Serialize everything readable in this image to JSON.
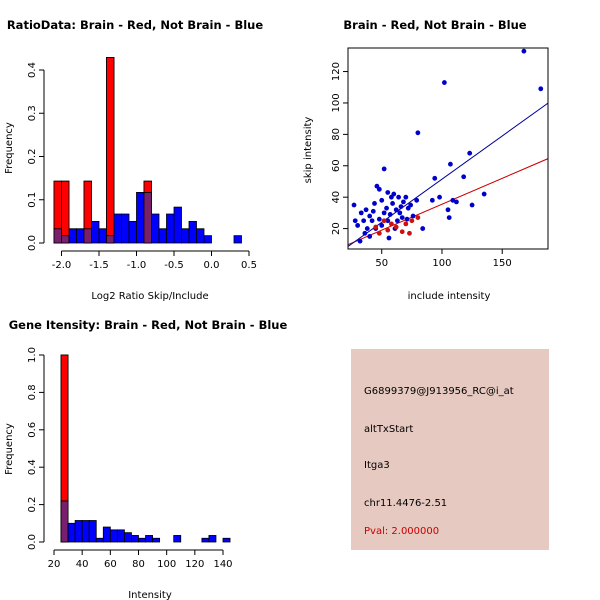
{
  "colors": {
    "red": "#ff0000",
    "blue": "#0000ff",
    "purple": "#7a1f6e",
    "bar_border": "#000000",
    "info_bg": "#e6c9c1",
    "pval_text": "#cc0000",
    "dot_red": "#cc1111",
    "dot_blue": "#0000cc",
    "line_red": "#cc0000",
    "line_blue": "#000099"
  },
  "chart_data": [
    {
      "type": "bar",
      "name": "ratio-histogram",
      "title": "RatioData: Brain - Red, Not Brain - Blue",
      "xlabel": "Log2 Ratio Skip/Include",
      "ylabel": "Frequency",
      "xlim": [
        -2.1,
        0.5
      ],
      "ylim": [
        0,
        0.43
      ],
      "xticks": [
        -2.0,
        -1.5,
        -1.0,
        -0.5,
        0.0,
        0.5
      ],
      "xtick_labels": [
        "-2.0",
        "-1.5",
        "-1.0",
        "-0.5",
        "0.0",
        "0.5"
      ],
      "yticks": [
        0.0,
        0.1,
        0.2,
        0.3,
        0.4
      ],
      "ytick_labels": [
        "0.0",
        "0.1",
        "0.2",
        "0.3",
        "0.4"
      ],
      "bin_width": 0.1,
      "series": [
        {
          "name": "Brain",
          "color": "red",
          "bins": [
            [
              -2.1,
              0.143
            ],
            [
              -2.0,
              0.143
            ],
            [
              -1.7,
              0.143
            ],
            [
              -1.4,
              0.429
            ],
            [
              -0.9,
              0.143
            ]
          ]
        },
        {
          "name": "Not Brain",
          "color": "blue",
          "bins": [
            [
              -2.1,
              0.033
            ],
            [
              -2.0,
              0.017
            ],
            [
              -1.9,
              0.033
            ],
            [
              -1.8,
              0.033
            ],
            [
              -1.7,
              0.033
            ],
            [
              -1.6,
              0.05
            ],
            [
              -1.5,
              0.033
            ],
            [
              -1.4,
              0.017
            ],
            [
              -1.3,
              0.067
            ],
            [
              -1.2,
              0.067
            ],
            [
              -1.1,
              0.05
            ],
            [
              -1.0,
              0.117
            ],
            [
              -0.9,
              0.117
            ],
            [
              -0.8,
              0.067
            ],
            [
              -0.7,
              0.033
            ],
            [
              -0.6,
              0.067
            ],
            [
              -0.5,
              0.083
            ],
            [
              -0.4,
              0.033
            ],
            [
              -0.3,
              0.05
            ],
            [
              -0.2,
              0.033
            ],
            [
              -0.1,
              0.017
            ],
            [
              0.3,
              0.017
            ]
          ]
        }
      ]
    },
    {
      "type": "scatter",
      "name": "intensity-scatter",
      "title": "Brain - Red, Not Brain - Blue",
      "xlabel": "include intensity",
      "ylabel": "skip intensity",
      "xlim": [
        22,
        188
      ],
      "ylim": [
        7,
        135
      ],
      "xticks": [
        50,
        100,
        150
      ],
      "xtick_labels": [
        "50",
        "100",
        "150"
      ],
      "yticks": [
        20,
        40,
        60,
        80,
        100,
        120
      ],
      "ytick_labels": [
        "20",
        "40",
        "60",
        "80",
        "100",
        "120"
      ],
      "series": [
        {
          "name": "Brain",
          "color": "dot_red",
          "points": [
            [
              48,
              17
            ],
            [
              55,
              19
            ],
            [
              62,
              21
            ],
            [
              67,
              18
            ],
            [
              73,
              17
            ],
            [
              58,
              23
            ],
            [
              75,
              25
            ],
            [
              80,
              27
            ],
            [
              52,
              25
            ],
            [
              45,
              21
            ],
            [
              70,
              23
            ]
          ],
          "fit": {
            "slope": 0.33,
            "intercept": 2.5,
            "color": "line_red"
          }
        },
        {
          "name": "Not Brain",
          "color": "dot_blue",
          "points": [
            [
              27,
              35
            ],
            [
              28,
              25
            ],
            [
              30,
              22
            ],
            [
              32,
              12
            ],
            [
              33,
              30
            ],
            [
              35,
              25
            ],
            [
              36,
              17
            ],
            [
              37,
              32
            ],
            [
              38,
              20
            ],
            [
              40,
              28
            ],
            [
              40,
              15
            ],
            [
              42,
              25
            ],
            [
              43,
              31
            ],
            [
              44,
              36
            ],
            [
              45,
              20
            ],
            [
              46,
              47
            ],
            [
              48,
              45
            ],
            [
              48,
              26
            ],
            [
              50,
              38
            ],
            [
              50,
              22
            ],
            [
              52,
              30
            ],
            [
              52,
              58
            ],
            [
              54,
              33
            ],
            [
              55,
              43
            ],
            [
              55,
              25
            ],
            [
              56,
              14
            ],
            [
              57,
              29
            ],
            [
              58,
              40
            ],
            [
              59,
              36
            ],
            [
              60,
              42
            ],
            [
              61,
              20
            ],
            [
              62,
              32
            ],
            [
              63,
              25
            ],
            [
              64,
              40
            ],
            [
              65,
              30
            ],
            [
              66,
              34
            ],
            [
              67,
              27
            ],
            [
              68,
              37
            ],
            [
              70,
              40
            ],
            [
              71,
              26
            ],
            [
              72,
              33
            ],
            [
              74,
              35
            ],
            [
              76,
              28
            ],
            [
              79,
              38
            ],
            [
              80,
              81
            ],
            [
              84,
              20
            ],
            [
              92,
              38
            ],
            [
              94,
              52
            ],
            [
              98,
              40
            ],
            [
              102,
              113
            ],
            [
              105,
              32
            ],
            [
              106,
              27
            ],
            [
              107,
              61
            ],
            [
              109,
              38
            ],
            [
              112,
              37
            ],
            [
              118,
              53
            ],
            [
              123,
              68
            ],
            [
              125,
              35
            ],
            [
              135,
              42
            ],
            [
              168,
              133
            ],
            [
              182,
              109
            ]
          ],
          "fit": {
            "slope": 0.55,
            "intercept": -3.5,
            "color": "line_blue"
          }
        }
      ]
    },
    {
      "type": "bar",
      "name": "intensity-histogram",
      "title": "Gene Itensity: Brain - Red, Not Brain - Blue",
      "xlabel": "Intensity",
      "ylabel": "Frequency",
      "xlim": [
        20,
        155
      ],
      "ylim": [
        0,
        1.0
      ],
      "xticks": [
        20,
        40,
        60,
        80,
        100,
        120,
        140
      ],
      "xtick_labels": [
        "20",
        "40",
        "60",
        "80",
        "100",
        "120",
        "140"
      ],
      "yticks": [
        0.0,
        0.2,
        0.4,
        0.6,
        0.8,
        1.0
      ],
      "ytick_labels": [
        "0.0",
        "0.2",
        "0.4",
        "0.6",
        "0.8",
        "1.0"
      ],
      "bin_width": 5,
      "series": [
        {
          "name": "Brain",
          "color": "red",
          "bins": [
            [
              25,
              1.0
            ]
          ]
        },
        {
          "name": "Not Brain",
          "color": "blue",
          "bins": [
            [
              25,
              0.22
            ],
            [
              30,
              0.1
            ],
            [
              35,
              0.115
            ],
            [
              40,
              0.115
            ],
            [
              45,
              0.115
            ],
            [
              50,
              0.02
            ],
            [
              55,
              0.08
            ],
            [
              60,
              0.065
            ],
            [
              65,
              0.065
            ],
            [
              70,
              0.05
            ],
            [
              75,
              0.035
            ],
            [
              80,
              0.02
            ],
            [
              85,
              0.035
            ],
            [
              90,
              0.02
            ],
            [
              105,
              0.035
            ],
            [
              125,
              0.02
            ],
            [
              130,
              0.035
            ],
            [
              140,
              0.02
            ]
          ]
        }
      ]
    }
  ],
  "info": {
    "probe_id": "G6899379@J913956_RC@i_at",
    "event_type": "altTxStart",
    "gene": "Itga3",
    "location": "chr11.4476-2.51",
    "pval": "Pval: 2.000000"
  }
}
